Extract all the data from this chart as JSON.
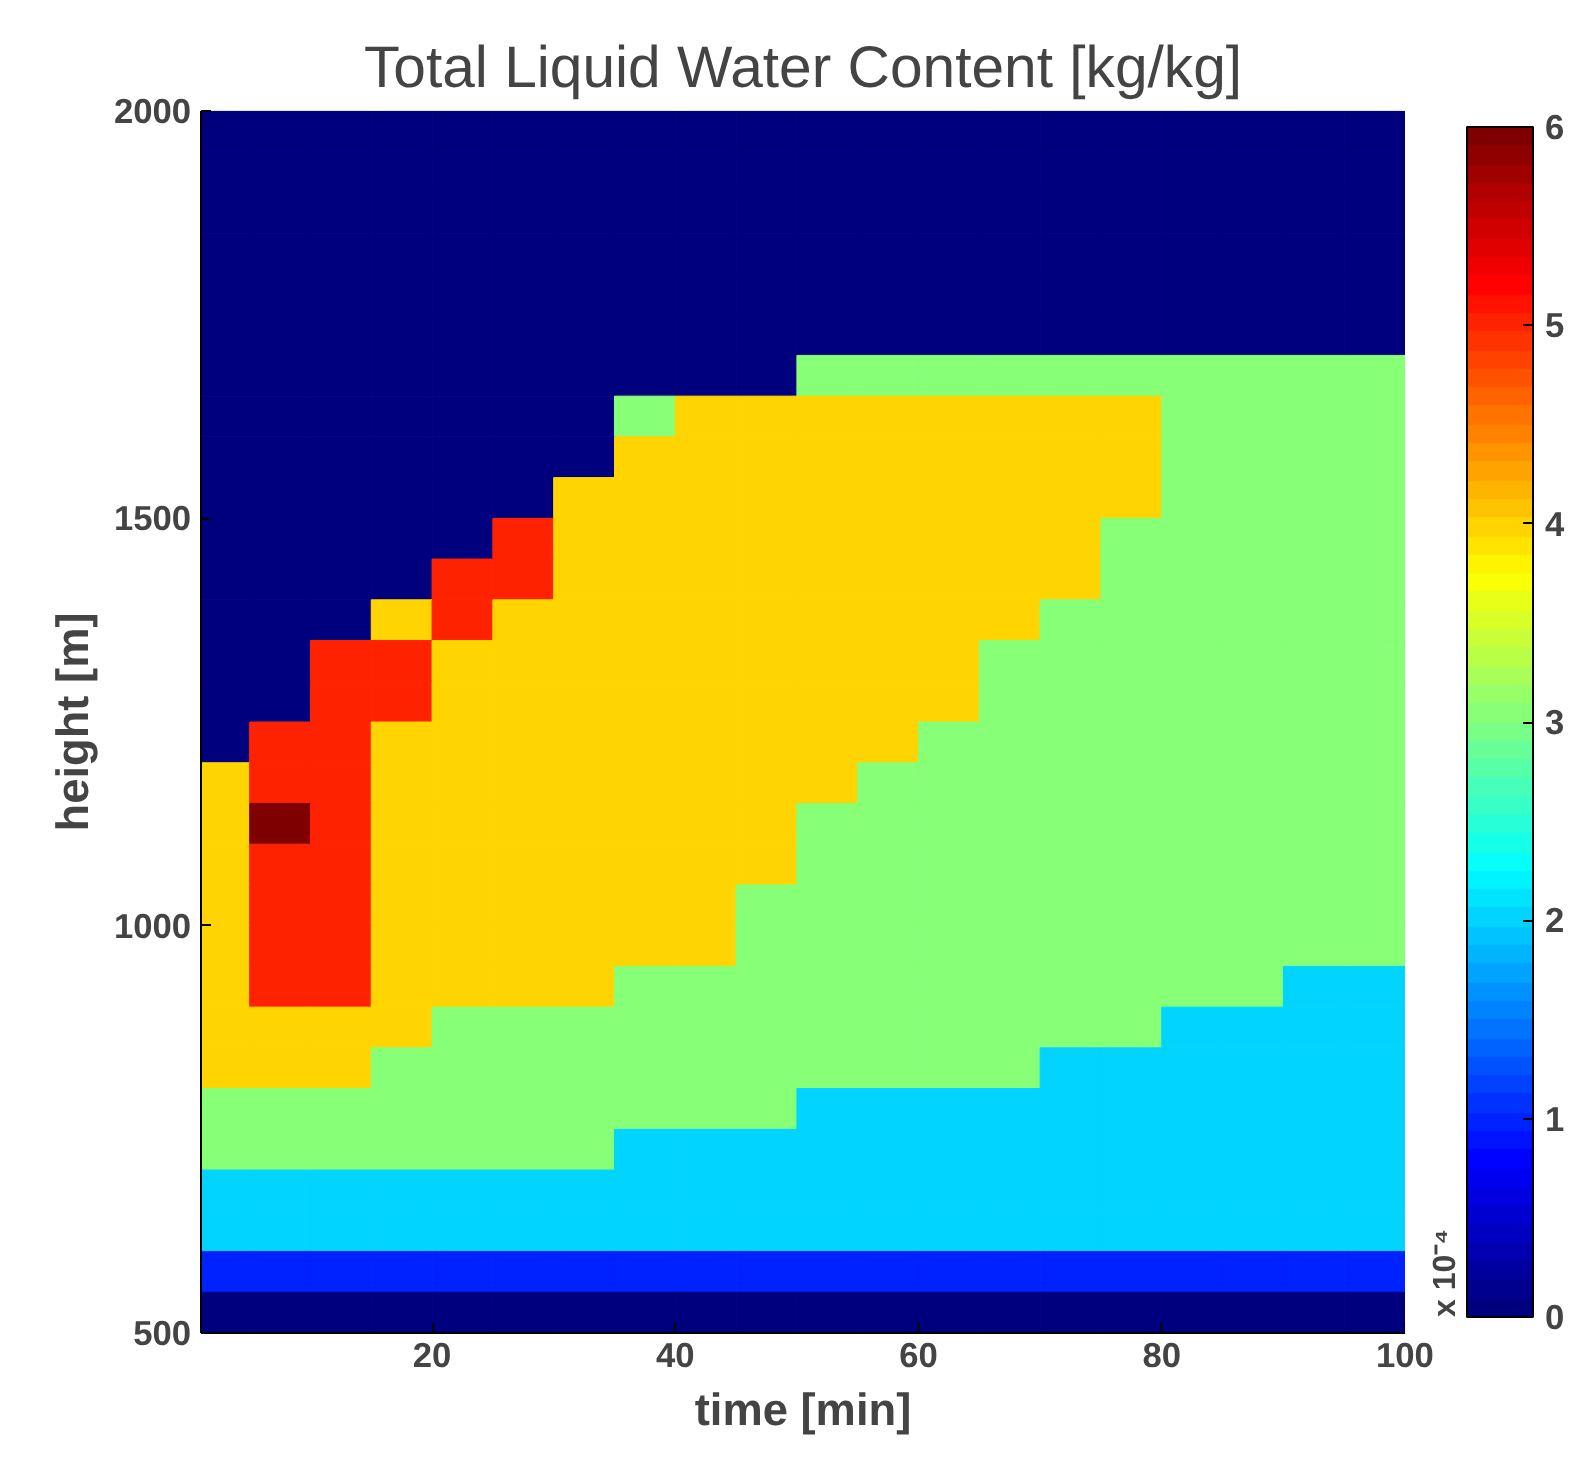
{
  "chart_data": {
    "type": "heatmap",
    "title": "Total Liquid Water Content [kg/kg]",
    "xlabel": "time [min]",
    "ylabel": "height [m]",
    "clabel": "x 10⁻⁴",
    "x": [
      2.5,
      7.5,
      12.5,
      17.5,
      22.5,
      27.5,
      32.5,
      37.5,
      42.5,
      47.5,
      52.5,
      57.5,
      62.5,
      67.5,
      72.5,
      77.5,
      82.5,
      87.5,
      92.5,
      97.5
    ],
    "y": [
      1975,
      1925,
      1875,
      1825,
      1775,
      1725,
      1675,
      1625,
      1575,
      1525,
      1475,
      1425,
      1375,
      1325,
      1275,
      1225,
      1175,
      1125,
      1075,
      1025,
      975,
      925,
      875,
      825,
      775,
      725,
      675,
      625,
      575,
      525
    ],
    "cells": [
      [
        0,
        0,
        0,
        0,
        0,
        0,
        0,
        0,
        0,
        0,
        0,
        0,
        0,
        0,
        0,
        0,
        0,
        0,
        0,
        0
      ],
      [
        0,
        0,
        0,
        0,
        0,
        0,
        0,
        0,
        0,
        0,
        0,
        0,
        0,
        0,
        0,
        0,
        0,
        0,
        0,
        0
      ],
      [
        0,
        0,
        0,
        0,
        0,
        0,
        0,
        0,
        0,
        0,
        0,
        0,
        0,
        0,
        0,
        0,
        0,
        0,
        0,
        0
      ],
      [
        0,
        0,
        0,
        0,
        0,
        0,
        0,
        0,
        0,
        0,
        0,
        0,
        0,
        0,
        0,
        0,
        0,
        0,
        0,
        0
      ],
      [
        0,
        0,
        0,
        0,
        0,
        0,
        0,
        0,
        0,
        0,
        0,
        0,
        0,
        0,
        0,
        0,
        0,
        0,
        0,
        0
      ],
      [
        0,
        0,
        0,
        0,
        0,
        0,
        0,
        0,
        0,
        0,
        0,
        0,
        0,
        0,
        0,
        0,
        0,
        0,
        0,
        0
      ],
      [
        0,
        0,
        0,
        0,
        0,
        0,
        0,
        0,
        0,
        0,
        3,
        3,
        3,
        3,
        3,
        3,
        3,
        3,
        3,
        3
      ],
      [
        0,
        0,
        0,
        0,
        0,
        0,
        0,
        3,
        4,
        4,
        4,
        4,
        4,
        4,
        4,
        4,
        3,
        3,
        3,
        3
      ],
      [
        0,
        0,
        0,
        0,
        0,
        0,
        0,
        4,
        4,
        4,
        4,
        4,
        4,
        4,
        4,
        4,
        3,
        3,
        3,
        3
      ],
      [
        0,
        0,
        0,
        0,
        0,
        0,
        4,
        4,
        4,
        4,
        4,
        4,
        4,
        4,
        4,
        4,
        3,
        3,
        3,
        3
      ],
      [
        0,
        0,
        0,
        0,
        0,
        5,
        4,
        4,
        4,
        4,
        4,
        4,
        4,
        4,
        4,
        3,
        3,
        3,
        3,
        3
      ],
      [
        0,
        0,
        0,
        0,
        5,
        5,
        4,
        4,
        4,
        4,
        4,
        4,
        4,
        4,
        4,
        3,
        3,
        3,
        3,
        3
      ],
      [
        0,
        0,
        0,
        4,
        5,
        4,
        4,
        4,
        4,
        4,
        4,
        4,
        4,
        4,
        3,
        3,
        3,
        3,
        3,
        3
      ],
      [
        0,
        0,
        5,
        5,
        4,
        4,
        4,
        4,
        4,
        4,
        4,
        4,
        4,
        3,
        3,
        3,
        3,
        3,
        3,
        3
      ],
      [
        0,
        0,
        5,
        5,
        4,
        4,
        4,
        4,
        4,
        4,
        4,
        4,
        4,
        3,
        3,
        3,
        3,
        3,
        3,
        3
      ],
      [
        0,
        5,
        5,
        4,
        4,
        4,
        4,
        4,
        4,
        4,
        4,
        4,
        3,
        3,
        3,
        3,
        3,
        3,
        3,
        3
      ],
      [
        4,
        5,
        5,
        4,
        4,
        4,
        4,
        4,
        4,
        4,
        4,
        3,
        3,
        3,
        3,
        3,
        3,
        3,
        3,
        3
      ],
      [
        4,
        6,
        5,
        4,
        4,
        4,
        4,
        4,
        4,
        4,
        3,
        3,
        3,
        3,
        3,
        3,
        3,
        3,
        3,
        3
      ],
      [
        4,
        5,
        5,
        4,
        4,
        4,
        4,
        4,
        4,
        4,
        3,
        3,
        3,
        3,
        3,
        3,
        3,
        3,
        3,
        3
      ],
      [
        4,
        5,
        5,
        4,
        4,
        4,
        4,
        4,
        4,
        3,
        3,
        3,
        3,
        3,
        3,
        3,
        3,
        3,
        3,
        3
      ],
      [
        4,
        5,
        5,
        4,
        4,
        4,
        4,
        4,
        4,
        3,
        3,
        3,
        3,
        3,
        3,
        3,
        3,
        3,
        3,
        3
      ],
      [
        4,
        5,
        5,
        4,
        4,
        4,
        4,
        3,
        3,
        3,
        3,
        3,
        3,
        3,
        3,
        3,
        3,
        3,
        2,
        2
      ],
      [
        4,
        4,
        4,
        4,
        3,
        3,
        3,
        3,
        3,
        3,
        3,
        3,
        3,
        3,
        3,
        3,
        2,
        2,
        2,
        2
      ],
      [
        4,
        4,
        4,
        3,
        3,
        3,
        3,
        3,
        3,
        3,
        3,
        3,
        3,
        3,
        2,
        2,
        2,
        2,
        2,
        2
      ],
      [
        3,
        3,
        3,
        3,
        3,
        3,
        3,
        3,
        3,
        3,
        2,
        2,
        2,
        2,
        2,
        2,
        2,
        2,
        2,
        2
      ],
      [
        3,
        3,
        3,
        3,
        3,
        3,
        3,
        2,
        2,
        2,
        2,
        2,
        2,
        2,
        2,
        2,
        2,
        2,
        2,
        2
      ],
      [
        2,
        2,
        2,
        2,
        2,
        2,
        2,
        2,
        2,
        2,
        2,
        2,
        2,
        2,
        2,
        2,
        2,
        2,
        2,
        2
      ],
      [
        2,
        2,
        2,
        2,
        2,
        2,
        2,
        2,
        2,
        2,
        2,
        2,
        2,
        2,
        2,
        2,
        2,
        2,
        2,
        2
      ],
      [
        1,
        1,
        1,
        1,
        1,
        1,
        1,
        1,
        1,
        1,
        1,
        1,
        1,
        1,
        1,
        1,
        1,
        1,
        1,
        1
      ],
      [
        0,
        0,
        0,
        0,
        0,
        0,
        0,
        0,
        0,
        0,
        0,
        0,
        0,
        0,
        0,
        0,
        0,
        0,
        0,
        0
      ]
    ],
    "xlim": [
      1,
      100
    ],
    "ylim": [
      500,
      2000
    ],
    "xticks": [
      20,
      40,
      60,
      80,
      100
    ],
    "yticks": [
      500,
      1000,
      1500,
      2000
    ],
    "clim": [
      0,
      6
    ],
    "cticks": [
      0,
      1,
      2,
      3,
      4,
      5,
      6
    ]
  }
}
